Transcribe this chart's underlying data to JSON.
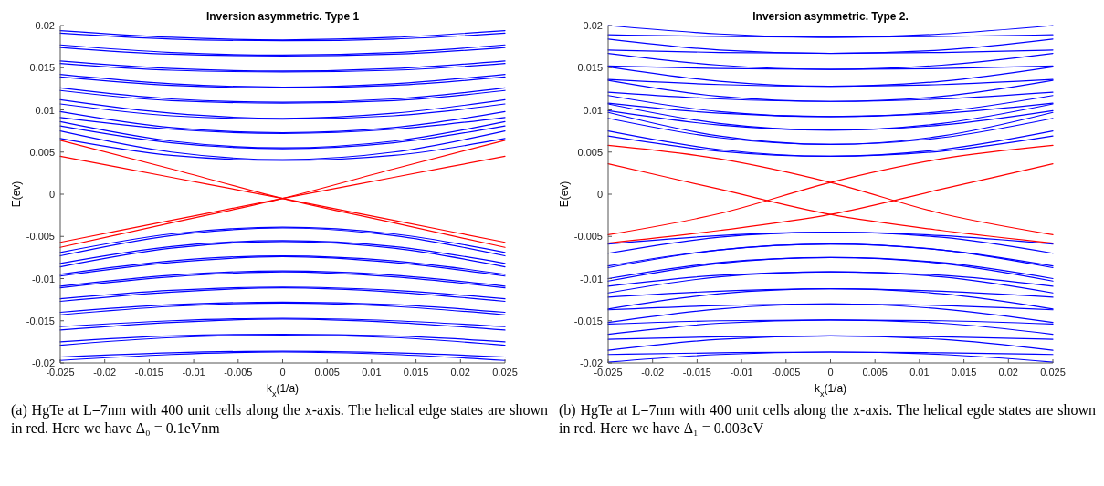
{
  "chart_data": [
    {
      "type": "line",
      "title": "Inversion asymmetric. Type 1",
      "xlabel": "k$_{x}$(1/a)",
      "ylabel": "E(ev)",
      "xlim": [
        -0.025,
        0.025
      ],
      "ylim": [
        -0.02,
        0.02
      ],
      "xticks": [
        -0.025,
        -0.02,
        -0.015,
        -0.01,
        -0.005,
        0,
        0.005,
        0.01,
        0.015,
        0.02,
        0.025
      ],
      "yticks": [
        -0.02,
        -0.015,
        -0.01,
        -0.005,
        0,
        0.005,
        0.01,
        0.015,
        0.02
      ],
      "x": [
        -0.025,
        -0.0125,
        0,
        0.0125,
        0.025
      ],
      "series": [
        {
          "color": "#0000ff",
          "values": [
            0.0194,
            0.0186,
            0.0183,
            0.0186,
            0.0194
          ]
        },
        {
          "color": "#0000ff",
          "values": [
            0.0191,
            0.0184,
            0.0182,
            0.0184,
            0.0191
          ]
        },
        {
          "color": "#0000ff",
          "values": [
            0.0177,
            0.0168,
            0.0165,
            0.0168,
            0.0177
          ]
        },
        {
          "color": "#0000ff",
          "values": [
            0.0174,
            0.0166,
            0.0164,
            0.0166,
            0.0174
          ]
        },
        {
          "color": "#0000ff",
          "values": [
            0.0158,
            0.0149,
            0.0146,
            0.0149,
            0.0158
          ]
        },
        {
          "color": "#0000ff",
          "values": [
            0.0155,
            0.0147,
            0.0145,
            0.0147,
            0.0155
          ]
        },
        {
          "color": "#0000ff",
          "values": [
            0.0142,
            0.0131,
            0.0127,
            0.0131,
            0.0142
          ]
        },
        {
          "color": "#0000ff",
          "values": [
            0.0139,
            0.0129,
            0.0126,
            0.0129,
            0.0139
          ]
        },
        {
          "color": "#0000ff",
          "values": [
            0.0126,
            0.0113,
            0.0109,
            0.0113,
            0.0126
          ]
        },
        {
          "color": "#0000ff",
          "values": [
            0.0123,
            0.0111,
            0.0108,
            0.0111,
            0.0123
          ]
        },
        {
          "color": "#0000ff",
          "values": [
            0.0112,
            0.0096,
            0.009,
            0.0096,
            0.0112
          ]
        },
        {
          "color": "#0000ff",
          "values": [
            0.0107,
            0.0093,
            0.0089,
            0.0093,
            0.0107
          ]
        },
        {
          "color": "#0000ff",
          "values": [
            0.0098,
            0.0079,
            0.0073,
            0.0079,
            0.0098
          ]
        },
        {
          "color": "#0000ff",
          "values": [
            0.0091,
            0.0077,
            0.0072,
            0.0077,
            0.0091
          ]
        },
        {
          "color": "#0000ff",
          "values": [
            0.0086,
            0.0063,
            0.0055,
            0.0063,
            0.0086
          ]
        },
        {
          "color": "#0000ff",
          "values": [
            0.0081,
            0.0061,
            0.0054,
            0.0061,
            0.0081
          ]
        },
        {
          "color": "#0000ff",
          "values": [
            0.0075,
            0.005,
            0.0041,
            0.005,
            0.0075
          ]
        },
        {
          "color": "#0000ff",
          "values": [
            0.0066,
            0.0046,
            0.004,
            0.0046,
            0.0066
          ]
        },
        {
          "color": "#0000ff",
          "values": [
            -0.0069,
            -0.0047,
            -0.0039,
            -0.0047,
            -0.0069
          ]
        },
        {
          "color": "#0000ff",
          "values": [
            -0.0073,
            -0.0049,
            -0.004,
            -0.0049,
            -0.0073
          ]
        },
        {
          "color": "#0000ff",
          "values": [
            -0.0082,
            -0.0062,
            -0.0055,
            -0.0062,
            -0.0082
          ]
        },
        {
          "color": "#0000ff",
          "values": [
            -0.0086,
            -0.0064,
            -0.0056,
            -0.0064,
            -0.0086
          ]
        },
        {
          "color": "#0000ff",
          "values": [
            -0.0095,
            -0.0079,
            -0.0073,
            -0.0079,
            -0.0095
          ]
        },
        {
          "color": "#0000ff",
          "values": [
            -0.0097,
            -0.0081,
            -0.0074,
            -0.0081,
            -0.0097
          ]
        },
        {
          "color": "#0000ff",
          "values": [
            -0.0109,
            -0.0096,
            -0.0091,
            -0.0096,
            -0.0109
          ]
        },
        {
          "color": "#0000ff",
          "values": [
            -0.0111,
            -0.0098,
            -0.0092,
            -0.0098,
            -0.0111
          ]
        },
        {
          "color": "#0000ff",
          "values": [
            -0.0124,
            -0.0114,
            -0.011,
            -0.0114,
            -0.0124
          ]
        },
        {
          "color": "#0000ff",
          "values": [
            -0.0127,
            -0.0116,
            -0.0111,
            -0.0116,
            -0.0127
          ]
        },
        {
          "color": "#0000ff",
          "values": [
            -0.014,
            -0.0131,
            -0.0128,
            -0.0131,
            -0.014
          ]
        },
        {
          "color": "#0000ff",
          "values": [
            -0.0143,
            -0.0133,
            -0.0129,
            -0.0133,
            -0.0143
          ]
        },
        {
          "color": "#0000ff",
          "values": [
            -0.0157,
            -0.015,
            -0.0147,
            -0.015,
            -0.0157
          ]
        },
        {
          "color": "#0000ff",
          "values": [
            -0.0161,
            -0.0152,
            -0.0148,
            -0.0152,
            -0.0161
          ]
        },
        {
          "color": "#0000ff",
          "values": [
            -0.0175,
            -0.0168,
            -0.0166,
            -0.0168,
            -0.0175
          ]
        },
        {
          "color": "#0000ff",
          "values": [
            -0.0179,
            -0.017,
            -0.0167,
            -0.017,
            -0.0179
          ]
        },
        {
          "color": "#0000ff",
          "values": [
            -0.0193,
            -0.0188,
            -0.0186,
            -0.0188,
            -0.0193
          ]
        },
        {
          "color": "#0000ff",
          "values": [
            -0.0197,
            -0.019,
            -0.0187,
            -0.019,
            -0.0197
          ]
        },
        {
          "color": "#ff0000",
          "values": [
            0.0064,
            0.003,
            -0.0005,
            -0.0034,
            -0.0063
          ]
        },
        {
          "color": "#ff0000",
          "values": [
            0.0045,
            0.002,
            -0.0005,
            -0.0031,
            -0.0057
          ]
        },
        {
          "color": "#ff0000",
          "values": [
            -0.0063,
            -0.0034,
            -0.0005,
            0.003,
            0.0064
          ]
        },
        {
          "color": "#ff0000",
          "values": [
            -0.0057,
            -0.0031,
            -0.0005,
            0.002,
            0.0045
          ]
        }
      ],
      "annotations": [
        "(a) HgTe at L=7nm with 400 unit cells along the x-axis. The helical edge states are shown in red. Here we have Δ₀ = 0.1eVnm"
      ]
    },
    {
      "type": "line",
      "title": "Inversion asymmetric. Type 2.",
      "xlabel": "k$_{x}$(1/a)",
      "ylabel": "E(ev)",
      "xlim": [
        -0.025,
        0.025
      ],
      "ylim": [
        -0.02,
        0.02
      ],
      "xticks": [
        -0.025,
        -0.02,
        -0.015,
        -0.01,
        -0.005,
        0,
        0.005,
        0.01,
        0.015,
        0.02,
        0.025
      ],
      "yticks": [
        -0.02,
        -0.015,
        -0.01,
        -0.005,
        0,
        0.005,
        0.01,
        0.015,
        0.02
      ],
      "x": [
        -0.025,
        -0.0125,
        0,
        0.0125,
        0.025
      ],
      "series": [
        {
          "color": "#0000ff",
          "values": [
            0.02,
            0.019,
            0.0186,
            0.0187,
            0.0189
          ]
        },
        {
          "color": "#0000ff",
          "values": [
            0.0189,
            0.0187,
            0.0186,
            0.019,
            0.02
          ]
        },
        {
          "color": "#0000ff",
          "values": [
            0.0184,
            0.0171,
            0.0167,
            0.0168,
            0.0171
          ]
        },
        {
          "color": "#0000ff",
          "values": [
            0.0171,
            0.0168,
            0.0167,
            0.0171,
            0.0184
          ]
        },
        {
          "color": "#0000ff",
          "values": [
            0.0167,
            0.0153,
            0.0148,
            0.0149,
            0.0152
          ]
        },
        {
          "color": "#0000ff",
          "values": [
            0.0152,
            0.0149,
            0.0148,
            0.0153,
            0.0167
          ]
        },
        {
          "color": "#0000ff",
          "values": [
            0.0151,
            0.0134,
            0.0128,
            0.013,
            0.0136
          ]
        },
        {
          "color": "#0000ff",
          "values": [
            0.0136,
            0.013,
            0.0128,
            0.0134,
            0.0151
          ]
        },
        {
          "color": "#0000ff",
          "values": [
            0.0135,
            0.0116,
            0.011,
            0.0113,
            0.0121
          ]
        },
        {
          "color": "#0000ff",
          "values": [
            0.0121,
            0.0113,
            0.011,
            0.0116,
            0.0135
          ]
        },
        {
          "color": "#0000ff",
          "values": [
            0.0117,
            0.0098,
            0.0092,
            0.0096,
            0.0108
          ]
        },
        {
          "color": "#0000ff",
          "values": [
            0.0108,
            0.0096,
            0.0092,
            0.0098,
            0.0117
          ]
        },
        {
          "color": "#0000ff",
          "values": [
            0.0107,
            0.0084,
            0.0076,
            0.0082,
            0.0099
          ]
        },
        {
          "color": "#0000ff",
          "values": [
            0.0099,
            0.0082,
            0.0076,
            0.0084,
            0.0107
          ]
        },
        {
          "color": "#0000ff",
          "values": [
            0.0097,
            0.0069,
            0.0059,
            0.0067,
            0.009
          ]
        },
        {
          "color": "#0000ff",
          "values": [
            0.009,
            0.0067,
            0.0059,
            0.0069,
            0.0097
          ]
        },
        {
          "color": "#0000ff",
          "values": [
            0.0075,
            0.0053,
            0.0045,
            0.0051,
            0.0069
          ]
        },
        {
          "color": "#0000ff",
          "values": [
            0.0069,
            0.0051,
            0.0045,
            0.0053,
            0.0075
          ]
        },
        {
          "color": "#0000ff",
          "values": [
            -0.0059,
            -0.0049,
            -0.0045,
            -0.0051,
            -0.007
          ]
        },
        {
          "color": "#0000ff",
          "values": [
            -0.007,
            -0.0051,
            -0.0045,
            -0.0049,
            -0.0059
          ]
        },
        {
          "color": "#0000ff",
          "values": [
            -0.0085,
            -0.0066,
            -0.0059,
            -0.0066,
            -0.0087
          ]
        },
        {
          "color": "#0000ff",
          "values": [
            -0.0087,
            -0.0066,
            -0.0059,
            -0.0066,
            -0.0085
          ]
        },
        {
          "color": "#0000ff",
          "values": [
            -0.01,
            -0.0081,
            -0.0075,
            -0.0082,
            -0.0103
          ]
        },
        {
          "color": "#0000ff",
          "values": [
            -0.0103,
            -0.0082,
            -0.0075,
            -0.0081,
            -0.01
          ]
        },
        {
          "color": "#0000ff",
          "values": [
            -0.0109,
            -0.0096,
            -0.0092,
            -0.0098,
            -0.0117
          ]
        },
        {
          "color": "#0000ff",
          "values": [
            -0.0117,
            -0.0098,
            -0.0092,
            -0.0096,
            -0.0109
          ]
        },
        {
          "color": "#0000ff",
          "values": [
            -0.0122,
            -0.0115,
            -0.0112,
            -0.0118,
            -0.0136
          ]
        },
        {
          "color": "#0000ff",
          "values": [
            -0.0136,
            -0.0118,
            -0.0112,
            -0.0115,
            -0.0122
          ]
        },
        {
          "color": "#0000ff",
          "values": [
            -0.0137,
            -0.0132,
            -0.013,
            -0.0136,
            -0.0152
          ]
        },
        {
          "color": "#0000ff",
          "values": [
            -0.0152,
            -0.0136,
            -0.013,
            -0.0132,
            -0.0137
          ]
        },
        {
          "color": "#0000ff",
          "values": [
            -0.0154,
            -0.015,
            -0.0149,
            -0.0153,
            -0.0166
          ]
        },
        {
          "color": "#0000ff",
          "values": [
            -0.0166,
            -0.0153,
            -0.0149,
            -0.015,
            -0.0154
          ]
        },
        {
          "color": "#0000ff",
          "values": [
            -0.0172,
            -0.0169,
            -0.0168,
            -0.0172,
            -0.0185
          ]
        },
        {
          "color": "#0000ff",
          "values": [
            -0.0185,
            -0.0172,
            -0.0168,
            -0.0169,
            -0.0172
          ]
        },
        {
          "color": "#0000ff",
          "values": [
            -0.019,
            -0.0188,
            -0.0187,
            -0.019,
            -0.0199
          ]
        },
        {
          "color": "#0000ff",
          "values": [
            -0.0199,
            -0.019,
            -0.0187,
            -0.0188,
            -0.019
          ]
        },
        {
          "color": "#ff0000",
          "values": [
            0.0058,
            0.0042,
            0.0014,
            -0.0023,
            -0.0048
          ]
        },
        {
          "color": "#ff0000",
          "values": [
            0.0036,
            0.0006,
            -0.0024,
            -0.0043,
            -0.0058
          ]
        },
        {
          "color": "#ff0000",
          "values": [
            -0.0048,
            -0.0023,
            0.0014,
            0.0042,
            0.0058
          ]
        },
        {
          "color": "#ff0000",
          "values": [
            -0.0058,
            -0.0043,
            -0.0024,
            0.0006,
            0.0036
          ]
        }
      ],
      "annotations": [
        "(b) HgTe at L=7nm with 400 unit cells along the x-axis. The helical egde states are shown in red. Here we have Δ₁ = 0.003eV"
      ]
    }
  ]
}
